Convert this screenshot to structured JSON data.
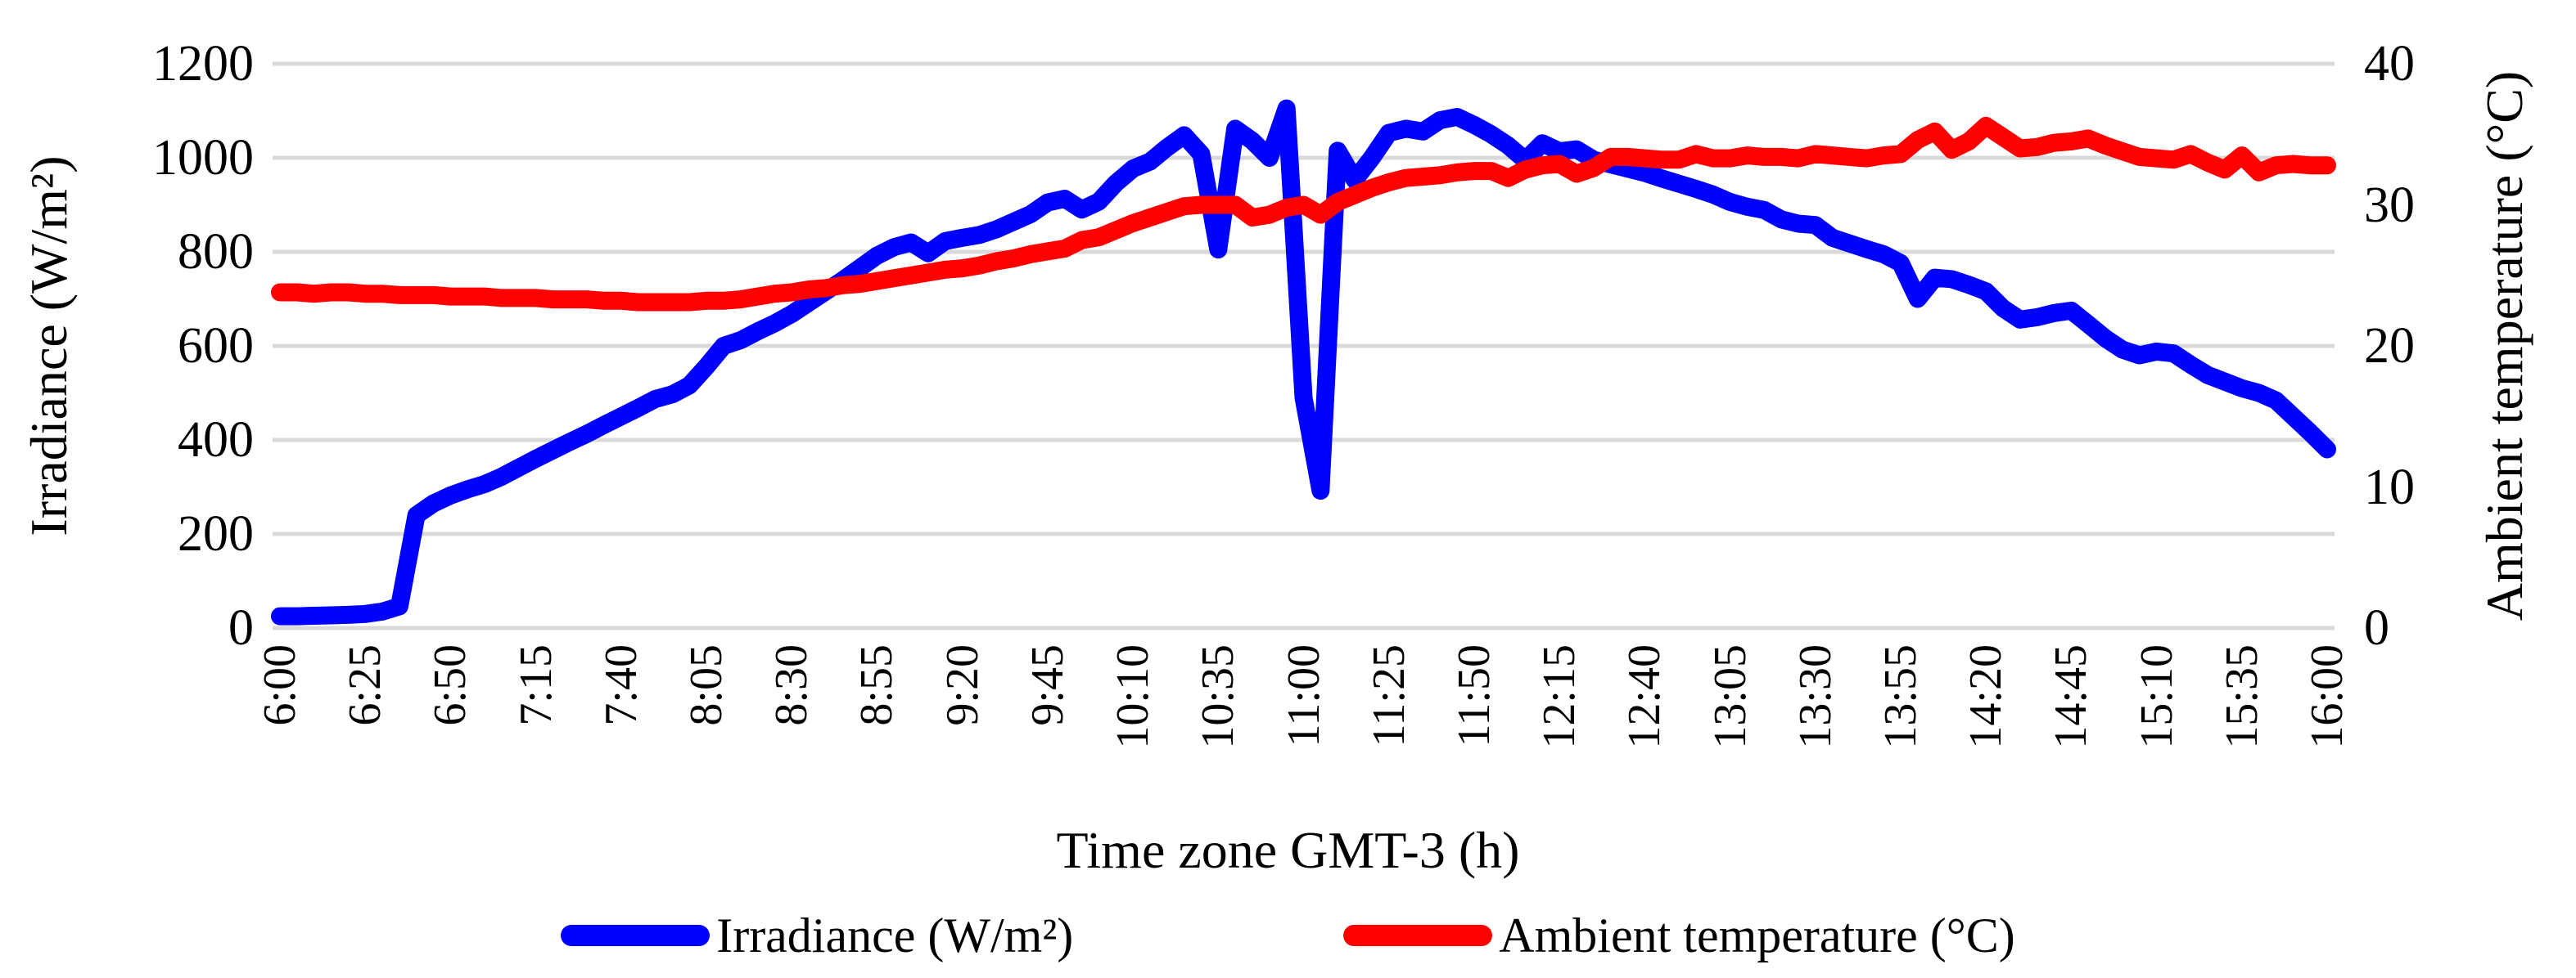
{
  "chart_data": {
    "type": "line",
    "title": "",
    "xlabel": "Time zone GMT-3 (h)",
    "categories": [
      "6:00",
      "6:25",
      "6:50",
      "7:15",
      "7:40",
      "8:05",
      "8:30",
      "8:55",
      "9:20",
      "9:45",
      "10:10",
      "10:35",
      "11:00",
      "11:25",
      "11:50",
      "12:15",
      "12:40",
      "13:05",
      "13:30",
      "13:55",
      "14:20",
      "14:45",
      "15:10",
      "15:35",
      "16:00"
    ],
    "x_start_time": "6:00",
    "x_end_time": "16:00",
    "x_step_minutes": 5,
    "grid": "horizontal-only",
    "legend_position": "bottom",
    "left_axis": {
      "label": "Irradiance (W/m²)",
      "min": 0,
      "max": 1200,
      "tick_step": 200,
      "tick_labels": [
        "1200",
        "1000",
        "800",
        "600",
        "400",
        "200",
        "0"
      ]
    },
    "right_axis": {
      "label": "Ambient temperature (°C)",
      "min": 0,
      "max": 40,
      "tick_step": 10,
      "tick_labels": [
        "40",
        "30",
        "20",
        "10",
        "0"
      ]
    },
    "series": [
      {
        "name": "Irradiance (W/m²)",
        "axis": "left",
        "color": "#0000ff",
        "values": [
          25,
          25,
          26,
          27,
          28,
          30,
          35,
          46,
          240,
          265,
          282,
          295,
          306,
          322,
          341,
          360,
          378,
          396,
          413,
          432,
          450,
          468,
          487,
          497,
          516,
          556,
          600,
          612,
          631,
          648,
          668,
          692,
          716,
          740,
          766,
          792,
          810,
          820,
          797,
          823,
          830,
          836,
          848,
          864,
          880,
          905,
          913,
          890,
          907,
          946,
          977,
          992,
          1022,
          1048,
          1008,
          805,
          1062,
          1036,
          1000,
          1105,
          490,
          292,
          1015,
          953,
          1000,
          1053,
          1062,
          1056,
          1080,
          1087,
          1070,
          1050,
          1026,
          995,
          1031,
          1014,
          1018,
          996,
          986,
          977,
          968,
          956,
          945,
          934,
          922,
          906,
          896,
          889,
          869,
          860,
          857,
          830,
          818,
          806,
          795,
          776,
          700,
          745,
          742,
          730,
          716,
          680,
          656,
          661,
          670,
          675,
          646,
          616,
          592,
          580,
          588,
          584,
          560,
          538,
          524,
          510,
          500,
          484,
          450,
          416,
          380
        ]
      },
      {
        "name": "Ambient temperature (°C)",
        "axis": "right",
        "color": "#ff0000",
        "values": [
          23.8,
          23.8,
          23.7,
          23.8,
          23.8,
          23.7,
          23.7,
          23.6,
          23.6,
          23.6,
          23.5,
          23.5,
          23.5,
          23.4,
          23.4,
          23.4,
          23.3,
          23.3,
          23.3,
          23.2,
          23.2,
          23.1,
          23.1,
          23.1,
          23.1,
          23.2,
          23.2,
          23.3,
          23.5,
          23.7,
          23.8,
          24.0,
          24.1,
          24.3,
          24.4,
          24.6,
          24.8,
          25.0,
          25.2,
          25.4,
          25.5,
          25.7,
          26.0,
          26.2,
          26.5,
          26.7,
          26.9,
          27.5,
          27.7,
          28.2,
          28.7,
          29.1,
          29.5,
          29.9,
          30.0,
          30.0,
          30.0,
          29.1,
          29.3,
          29.8,
          30.0,
          29.3,
          30.2,
          30.7,
          31.2,
          31.6,
          31.9,
          32.0,
          32.1,
          32.3,
          32.4,
          32.4,
          31.9,
          32.5,
          32.8,
          32.9,
          32.2,
          32.6,
          33.4,
          33.4,
          33.3,
          33.2,
          33.2,
          33.6,
          33.3,
          33.3,
          33.5,
          33.4,
          33.4,
          33.3,
          33.6,
          33.5,
          33.4,
          33.3,
          33.5,
          33.6,
          34.6,
          35.2,
          33.9,
          34.5,
          35.6,
          34.8,
          34.0,
          34.1,
          34.4,
          34.5,
          34.7,
          34.2,
          33.8,
          33.4,
          33.3,
          33.2,
          33.6,
          33.0,
          32.5,
          33.5,
          32.3,
          32.8,
          32.9,
          32.8,
          32.8
        ]
      }
    ]
  },
  "colors": {
    "gridline": "#d9d9d9",
    "text": "#000000",
    "background": "#ffffff",
    "irradiance_line": "#0000ff",
    "temperature_line": "#ff0000"
  }
}
